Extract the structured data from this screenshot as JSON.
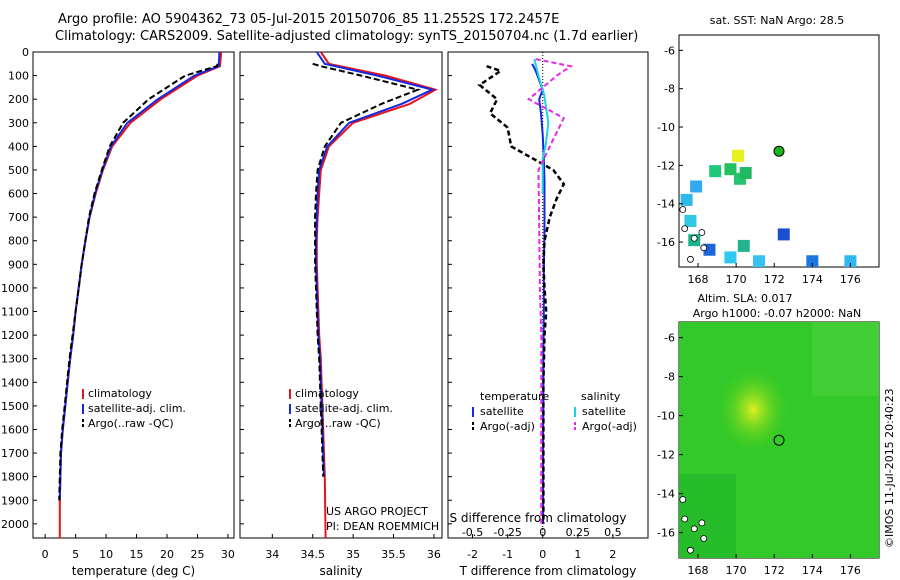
{
  "header": {
    "line1": "Argo profile: AO 5904362_73 05-Jul-2015 20150706_85 11.2552S 172.2457E",
    "line2": "Climatology: CARS2009. Satellite-adjusted climatology: synTS_20150704.nc (1.7d earlier)"
  },
  "credit": "©IMOS 11-Jul-2015 20:40:23",
  "colors": {
    "clim": "#e8141a",
    "sat": "#1428e0",
    "argo": "#000000",
    "cyan": "#1ed2e6",
    "magenta": "#e628e6"
  },
  "chart_data": [
    {
      "type": "line",
      "id": "temperature",
      "xlabel": "temperature (deg C)",
      "ylim": [
        0,
        2060
      ],
      "xlim": [
        -2,
        31
      ],
      "xticks": [
        "0",
        "5",
        "10",
        "15",
        "20",
        "25",
        "30"
      ],
      "xtick_values": [
        0,
        5,
        10,
        15,
        20,
        25,
        30
      ],
      "yticks": [
        "0",
        "100",
        "200",
        "300",
        "400",
        "500",
        "600",
        "700",
        "800",
        "900",
        "1000",
        "1100",
        "1200",
        "1300",
        "1400",
        "1500",
        "1600",
        "1700",
        "1800",
        "1900",
        "2000"
      ],
      "ytick_values": [
        0,
        100,
        200,
        300,
        400,
        500,
        600,
        700,
        800,
        900,
        1000,
        1100,
        1200,
        1300,
        1400,
        1500,
        1600,
        1700,
        1800,
        1900,
        2000
      ],
      "legend": [
        "climatology",
        "satellite-adj. clim.",
        "Argo(..raw -QC)"
      ],
      "series": [
        {
          "name": "climatology",
          "x": [
            28.9,
            28.7,
            25,
            19,
            14,
            11,
            9.5,
            8.3,
            7.3,
            6.6,
            6,
            5.5,
            5,
            4.6,
            4.1,
            3.7,
            3.3,
            2.9,
            2.6,
            2.5,
            2.4,
            2.4
          ],
          "y": [
            0,
            60,
            100,
            200,
            300,
            400,
            500,
            600,
            700,
            800,
            900,
            1000,
            1100,
            1200,
            1300,
            1400,
            1500,
            1600,
            1700,
            1800,
            1900,
            2060
          ]
        },
        {
          "name": "satellite-adj. clim.",
          "x": [
            28.6,
            28.5,
            24.5,
            18.5,
            13.5,
            10.8,
            9.4,
            8.2,
            7.3,
            6.6,
            6,
            5.5,
            5,
            4.6,
            4.1,
            3.7,
            3.3,
            2.9,
            2.6,
            2.5,
            2.4
          ],
          "y": [
            0,
            60,
            100,
            200,
            300,
            400,
            500,
            600,
            700,
            800,
            900,
            1000,
            1100,
            1200,
            1300,
            1400,
            1500,
            1600,
            1700,
            1800,
            1900
          ]
        },
        {
          "name": "Argo(..raw -QC)",
          "x": [
            28.3,
            28.2,
            23,
            17,
            12.8,
            10.6,
            9.3,
            8.1,
            7.2,
            6.6,
            6,
            5.5,
            5,
            4.5,
            4,
            3.6,
            3.2,
            2.8,
            2.5,
            2.4,
            2.3
          ],
          "y": [
            50,
            60,
            100,
            200,
            300,
            400,
            500,
            600,
            700,
            800,
            900,
            1000,
            1100,
            1200,
            1300,
            1400,
            1500,
            1600,
            1700,
            1800,
            1900
          ]
        }
      ]
    },
    {
      "type": "line",
      "id": "salinity",
      "xlabel": "salinity",
      "ylim": [
        0,
        2060
      ],
      "xlim": [
        33.6,
        36.1
      ],
      "xticks": [
        "34",
        "34.5",
        "35",
        "35.5",
        "36"
      ],
      "xtick_values": [
        34,
        34.5,
        35,
        35.5,
        36
      ],
      "legend": [
        "climatology",
        "satellite-adj. clim.",
        "Argo(..raw -QC)"
      ],
      "annotation": [
        "US ARGO PROJECT",
        "PI: DEAN ROEMMICH"
      ],
      "series": [
        {
          "name": "climatology",
          "x": [
            34.6,
            34.7,
            35.4,
            36.02,
            35.7,
            35.0,
            34.7,
            34.6,
            34.58,
            34.56,
            34.55,
            34.55,
            34.56,
            34.57,
            34.58,
            34.6,
            34.61,
            34.62,
            34.63,
            34.64,
            34.65,
            34.66
          ],
          "y": [
            0,
            50,
            100,
            160,
            220,
            300,
            400,
            500,
            600,
            700,
            800,
            900,
            1000,
            1100,
            1200,
            1300,
            1400,
            1500,
            1600,
            1700,
            1800,
            2060
          ]
        },
        {
          "name": "satellite-adj. clim.",
          "x": [
            34.55,
            34.65,
            35.3,
            35.98,
            35.6,
            34.95,
            34.68,
            34.58,
            34.56,
            34.55,
            34.54,
            34.54,
            34.55,
            34.56,
            34.57,
            34.59,
            34.6,
            34.61,
            34.62,
            34.63,
            34.64
          ],
          "y": [
            0,
            50,
            100,
            160,
            220,
            300,
            400,
            500,
            600,
            700,
            800,
            900,
            1000,
            1100,
            1200,
            1300,
            1400,
            1500,
            1600,
            1700,
            1800
          ]
        },
        {
          "name": "Argo(..raw -QC)",
          "x": [
            34.5,
            34.6,
            35.1,
            35.8,
            35.35,
            34.85,
            34.65,
            34.56,
            34.54,
            34.53,
            34.53,
            34.53,
            34.54,
            34.55,
            34.56,
            34.58,
            34.59,
            34.6,
            34.61,
            34.62,
            34.63
          ],
          "y": [
            50,
            60,
            100,
            160,
            220,
            300,
            400,
            500,
            600,
            700,
            800,
            900,
            1000,
            1100,
            1200,
            1300,
            1400,
            1500,
            1600,
            1700,
            1800
          ]
        }
      ]
    },
    {
      "type": "line",
      "id": "difference",
      "xlabel": "T difference from climatology",
      "xlabel_top": "S difference from climatology",
      "xlim": [
        -2.7,
        3
      ],
      "xticks": [
        "-2",
        "-1",
        "0",
        "1",
        "2"
      ],
      "xtick_values": [
        -2,
        -1,
        0,
        1,
        2
      ],
      "sticks": [
        "-0.5",
        "-0.25",
        "0",
        "0.25",
        "0.5"
      ],
      "stick_values": [
        -0.5,
        -0.25,
        0,
        0.25,
        0.5
      ],
      "legend_titles": [
        "temperature",
        "salinity"
      ],
      "legend": [
        "satellite",
        "Argo(-adj)",
        "satellite",
        "Argo(-adj)"
      ],
      "series": [
        {
          "name": "T satellite",
          "x": [
            -0.3,
            -0.2,
            -0.1,
            0,
            -0.1,
            -0.05,
            0,
            0.03,
            0.05,
            0.05,
            0.05,
            0.04,
            0.03,
            0.03,
            0.02,
            0.02,
            0.01,
            0.01,
            0.01,
            0.01,
            0.01
          ],
          "y": [
            50,
            80,
            120,
            160,
            200,
            260,
            350,
            450,
            550,
            650,
            750,
            850,
            950,
            1100,
            1300,
            1500,
            1600,
            1700,
            1800,
            1900,
            2000
          ]
        },
        {
          "name": "T Argo(-adj)",
          "x": [
            -1.6,
            -1.2,
            -1.8,
            -1.3,
            -1.5,
            -1.0,
            -0.9,
            0.3,
            0.6,
            0.4,
            0.2,
            0.05,
            0.02,
            0.05,
            0.1,
            0.05,
            0.02,
            0.02,
            0.02,
            0.02,
            0.02
          ],
          "y": [
            60,
            80,
            140,
            200,
            260,
            320,
            400,
            500,
            560,
            620,
            700,
            800,
            900,
            1000,
            1100,
            1200,
            1400,
            1600,
            1800,
            1900,
            2000
          ]
        },
        {
          "name": "S satellite",
          "x": [
            -0.06,
            -0.03,
            0.01,
            0.04,
            0.02,
            0.0,
            0.0,
            0.0
          ],
          "y": [
            30,
            100,
            180,
            300,
            400,
            450,
            550,
            600
          ]
        },
        {
          "name": "S Argo(-adj)",
          "x": [
            -0.05,
            0.2,
            0.1,
            -0.1,
            0.15,
            0.05,
            -0.03,
            -0.02,
            -0.01,
            -0.01,
            -0.01,
            -0.01
          ],
          "y": [
            30,
            60,
            100,
            200,
            280,
            400,
            500,
            1000,
            1200,
            1400,
            1800,
            2000
          ]
        }
      ]
    },
    {
      "type": "heatmap",
      "id": "sst_map",
      "title": "sat. SST: NaN Argo: 28.5",
      "xlim": [
        167,
        177.5
      ],
      "ylim": [
        -17.3,
        -5.2
      ],
      "xticks": [
        "168",
        "170",
        "172",
        "174",
        "176"
      ],
      "xtick_values": [
        168,
        170,
        172,
        174,
        176
      ],
      "yticks": [
        "-6",
        "-8",
        "-10",
        "-12",
        "-14",
        "-16"
      ],
      "ytick_values": [
        -6,
        -8,
        -10,
        -12,
        -14,
        -16
      ],
      "float_position": {
        "lon": 172.25,
        "lat": -11.26
      }
    },
    {
      "type": "heatmap",
      "id": "sla_map",
      "title": "Altim. SLA: 0.017",
      "subtitle": "Argo h1000: -0.07 h2000: NaN",
      "xlim": [
        167,
        177.5
      ],
      "ylim": [
        -17.3,
        -5.2
      ],
      "xticks": [
        "168",
        "170",
        "172",
        "174",
        "176"
      ],
      "xtick_values": [
        168,
        170,
        172,
        174,
        176
      ],
      "yticks": [
        "-6",
        "-8",
        "-10",
        "-12",
        "-14",
        "-16"
      ],
      "ytick_values": [
        -6,
        -8,
        -10,
        -12,
        -14,
        -16
      ],
      "float_position": {
        "lon": 172.25,
        "lat": -11.26
      }
    }
  ]
}
